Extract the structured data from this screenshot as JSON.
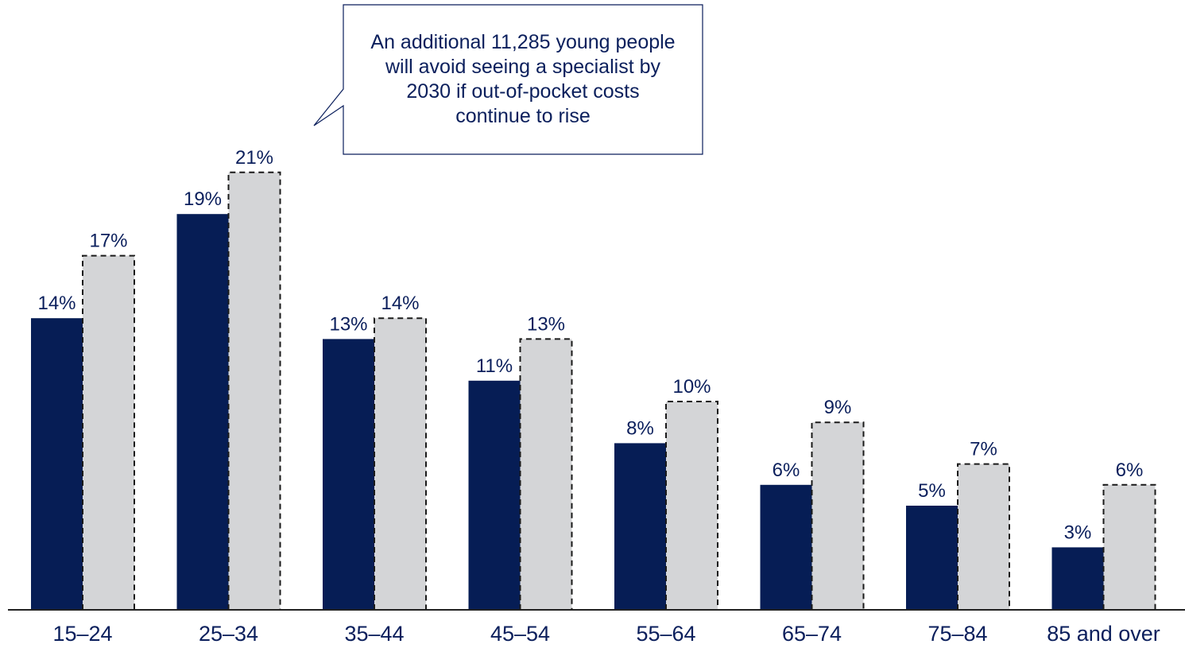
{
  "chart_data": {
    "type": "bar",
    "categories": [
      "15–24",
      "25–34",
      "35–44",
      "45–54",
      "55–64",
      "65–74",
      "75–84",
      "85 and over"
    ],
    "series": [
      {
        "values": [
          14,
          19,
          13,
          11,
          8,
          6,
          5,
          3
        ],
        "labels": [
          "14%",
          "19%",
          "13%",
          "11%",
          "8%",
          "6%",
          "5%",
          "3%"
        ],
        "color": "#061d55",
        "style": "solid"
      },
      {
        "values": [
          17,
          21,
          14,
          13,
          10,
          9,
          7,
          6
        ],
        "labels": [
          "17%",
          "21%",
          "14%",
          "13%",
          "10%",
          "9%",
          "7%",
          "6%"
        ],
        "color": "#d4d5d7",
        "style": "dashed-outline"
      }
    ],
    "annotation": "An additional 11,285 young people will avoid seeing a specialist by 2030 if out-of-pocket costs continue to rise",
    "ylim": [
      0,
      24
    ],
    "grid": false,
    "legend": false
  }
}
